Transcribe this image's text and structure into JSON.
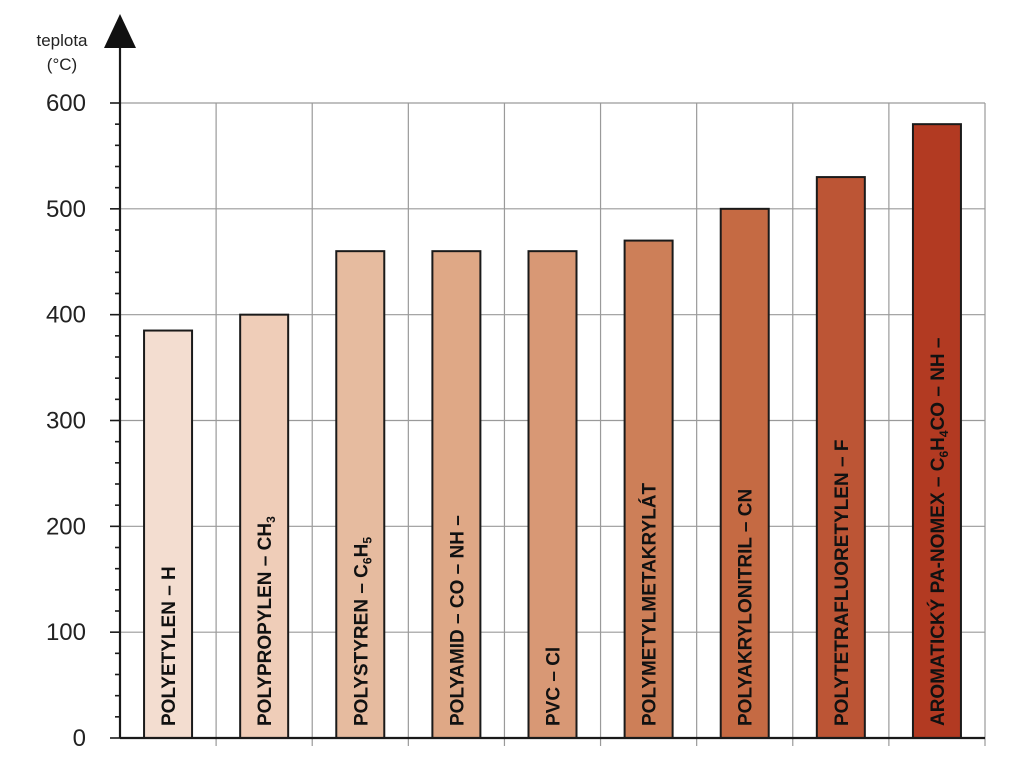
{
  "chart_data": {
    "type": "bar",
    "ylabel": "teplota",
    "yunit": "(°C)",
    "ylim": [
      0,
      600
    ],
    "yticks": [
      0,
      100,
      200,
      300,
      400,
      500,
      600
    ],
    "grid": true,
    "bars": [
      {
        "label": [
          {
            "t": "POLYETYLEN – H"
          }
        ],
        "value": 385,
        "color": "#f3ddd0"
      },
      {
        "label": [
          {
            "t": "POLYPROPYLEN – CH"
          },
          {
            "t": "3",
            "sub": true
          }
        ],
        "value": 400,
        "color": "#efcdb8"
      },
      {
        "label": [
          {
            "t": "POLYSTYREN – C"
          },
          {
            "t": "6",
            "sub": true
          },
          {
            "t": "H"
          },
          {
            "t": "5",
            "sub": true
          }
        ],
        "value": 460,
        "color": "#e6bb9f"
      },
      {
        "label": [
          {
            "t": "POLYAMID – CO – NH –"
          }
        ],
        "value": 460,
        "color": "#dfa886"
      },
      {
        "label": [
          {
            "t": "PVC – Cl"
          }
        ],
        "value": 460,
        "color": "#d89875"
      },
      {
        "label": [
          {
            "t": "POLYMETYLMETAKRYLÁT"
          }
        ],
        "value": 470,
        "color": "#cd7f58"
      },
      {
        "label": [
          {
            "t": "POLYAKRYLONITRIL – CN"
          }
        ],
        "value": 500,
        "color": "#c56a43"
      },
      {
        "label": [
          {
            "t": "POLYTETRAFLUORETYLEN – F"
          }
        ],
        "value": 530,
        "color": "#bc5535"
      },
      {
        "label": [
          {
            "t": "AROMATICKÝ PA-NOMEX – C"
          },
          {
            "t": "6",
            "sub": true
          },
          {
            "t": "H"
          },
          {
            "t": "4",
            "sub": true
          },
          {
            "t": "CO – NH –"
          }
        ],
        "value": 580,
        "color": "#b23a22"
      }
    ]
  }
}
